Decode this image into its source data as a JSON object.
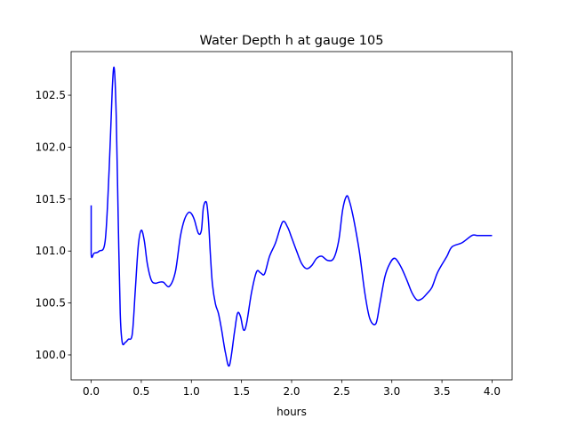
{
  "chart_data": {
    "type": "line",
    "title": "Water Depth h at gauge 105",
    "xlabel": "hours",
    "ylabel": "",
    "xlim": [
      -0.2,
      4.2
    ],
    "ylim": [
      99.76,
      102.92
    ],
    "xticks": [
      0.0,
      0.5,
      1.0,
      1.5,
      2.0,
      2.5,
      3.0,
      3.5,
      4.0
    ],
    "xtick_labels": [
      "0.0",
      "0.5",
      "1.0",
      "1.5",
      "2.0",
      "2.5",
      "3.0",
      "3.5",
      "4.0"
    ],
    "yticks": [
      100.0,
      100.5,
      101.0,
      101.5,
      102.0,
      102.5
    ],
    "ytick_labels": [
      "100.0",
      "100.5",
      "101.0",
      "101.5",
      "102.0",
      "102.5"
    ],
    "grid": false,
    "series": [
      {
        "color": "#0000ff",
        "x": [
          0.0,
          0.0,
          0.03,
          0.08,
          0.14,
          0.18,
          0.21,
          0.23,
          0.25,
          0.27,
          0.29,
          0.31,
          0.34,
          0.37,
          0.41,
          0.44,
          0.47,
          0.5,
          0.53,
          0.56,
          0.6,
          0.64,
          0.68,
          0.72,
          0.78,
          0.84,
          0.89,
          0.93,
          0.97,
          1.0,
          1.03,
          1.07,
          1.1,
          1.12,
          1.15,
          1.17,
          1.19,
          1.21,
          1.24,
          1.27,
          1.3,
          1.34,
          1.38,
          1.43,
          1.46,
          1.49,
          1.52,
          1.55,
          1.6,
          1.65,
          1.69,
          1.73,
          1.78,
          1.84,
          1.91,
          1.96,
          2.0,
          2.05,
          2.1,
          2.15,
          2.2,
          2.25,
          2.3,
          2.36,
          2.42,
          2.47,
          2.51,
          2.55,
          2.58,
          2.61,
          2.64,
          2.68,
          2.73,
          2.78,
          2.84,
          2.88,
          2.93,
          2.98,
          3.03,
          3.09,
          3.15,
          3.2,
          3.25,
          3.3,
          3.35,
          3.4,
          3.45,
          3.5,
          3.55,
          3.6,
          3.7,
          3.8,
          3.85,
          3.9,
          3.95,
          4.0
        ],
        "y": [
          101.44,
          100.97,
          100.98,
          101.0,
          101.1,
          101.8,
          102.55,
          102.76,
          102.3,
          101.3,
          100.4,
          100.12,
          100.12,
          100.15,
          100.2,
          100.62,
          101.05,
          101.2,
          101.1,
          100.88,
          100.72,
          100.69,
          100.7,
          100.7,
          100.66,
          100.8,
          101.14,
          101.3,
          101.37,
          101.36,
          101.3,
          101.17,
          101.2,
          101.42,
          101.47,
          101.3,
          100.96,
          100.68,
          100.49,
          100.4,
          100.25,
          100.02,
          99.9,
          100.22,
          100.4,
          100.37,
          100.24,
          100.3,
          100.6,
          100.8,
          100.79,
          100.78,
          100.95,
          101.08,
          101.28,
          101.23,
          101.13,
          101.0,
          100.88,
          100.83,
          100.86,
          100.93,
          100.95,
          100.91,
          100.93,
          101.1,
          101.4,
          101.53,
          101.47,
          101.35,
          101.2,
          100.97,
          100.6,
          100.35,
          100.3,
          100.49,
          100.75,
          100.88,
          100.93,
          100.85,
          100.72,
          100.6,
          100.53,
          100.54,
          100.59,
          100.65,
          100.78,
          100.87,
          100.95,
          101.04,
          101.08,
          101.15,
          101.15,
          101.15,
          101.15,
          101.15
        ]
      }
    ]
  }
}
